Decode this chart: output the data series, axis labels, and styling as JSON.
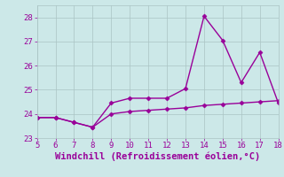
{
  "xlabel": "Windchill (Refroidissement éolien,°C)",
  "xlim": [
    5,
    18
  ],
  "ylim": [
    23,
    28.5
  ],
  "yticks": [
    23,
    24,
    25,
    26,
    27,
    28
  ],
  "xticks": [
    5,
    6,
    7,
    8,
    9,
    10,
    11,
    12,
    13,
    14,
    15,
    16,
    17,
    18
  ],
  "bg_color": "#cce8e8",
  "line_color": "#990099",
  "grid_color": "#aac4c4",
  "line1_x": [
    5,
    6,
    7,
    8,
    9,
    10,
    11,
    12,
    13,
    14,
    15,
    16,
    17,
    18
  ],
  "line1_y": [
    23.85,
    23.85,
    23.65,
    23.45,
    24.0,
    24.1,
    24.15,
    24.2,
    24.25,
    24.35,
    24.4,
    24.45,
    24.5,
    24.55
  ],
  "line2_x": [
    5,
    6,
    7,
    8,
    9,
    10,
    11,
    12,
    13,
    14,
    15,
    16,
    17,
    18
  ],
  "line2_y": [
    23.85,
    23.85,
    23.65,
    23.45,
    24.45,
    24.65,
    24.65,
    24.65,
    25.05,
    28.05,
    27.05,
    25.3,
    26.55,
    24.45
  ],
  "marker": "D",
  "marker_size": 2.5,
  "linewidth": 1.0,
  "xlabel_fontsize": 7.5,
  "tick_fontsize": 6.5
}
